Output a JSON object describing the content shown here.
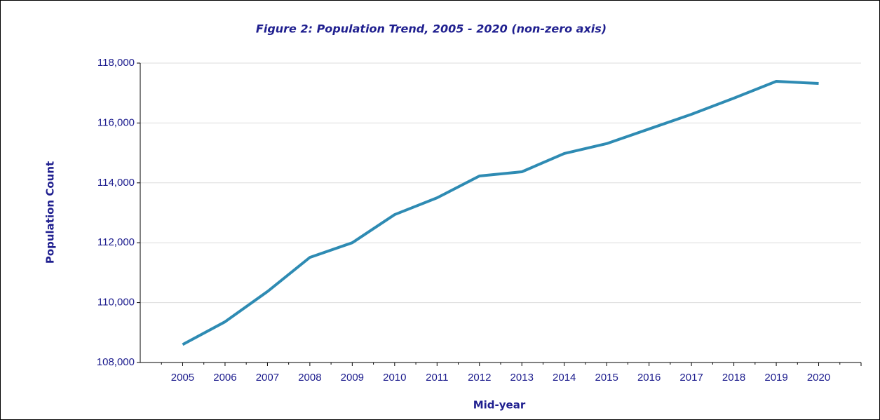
{
  "chart_data": {
    "type": "line",
    "title": "Figure 2: Population Trend, 2005 - 2020 (non-zero axis)",
    "x_label": "Mid-year",
    "y_label": "Population Count",
    "categories": [
      "2005",
      "2006",
      "2007",
      "2008",
      "2009",
      "2010",
      "2011",
      "2012",
      "2013",
      "2014",
      "2015",
      "2016",
      "2017",
      "2018",
      "2019",
      "2020"
    ],
    "series": [
      {
        "name": "Population",
        "color": "#2e8bb3",
        "values": [
          108600,
          109360,
          110370,
          111510,
          112000,
          112940,
          113500,
          114230,
          114370,
          114980,
          115310,
          115800,
          116290,
          116830,
          117390,
          117320
        ]
      }
    ],
    "ylim": [
      108000,
      118000
    ],
    "yticks": [
      {
        "value": 108000,
        "label": "108,000"
      },
      {
        "value": 110000,
        "label": "110,000"
      },
      {
        "value": 112000,
        "label": "112,000"
      },
      {
        "value": 114000,
        "label": "114,000"
      },
      {
        "value": 116000,
        "label": "116,000"
      },
      {
        "value": 118000,
        "label": "118,000"
      }
    ],
    "grid": true
  }
}
